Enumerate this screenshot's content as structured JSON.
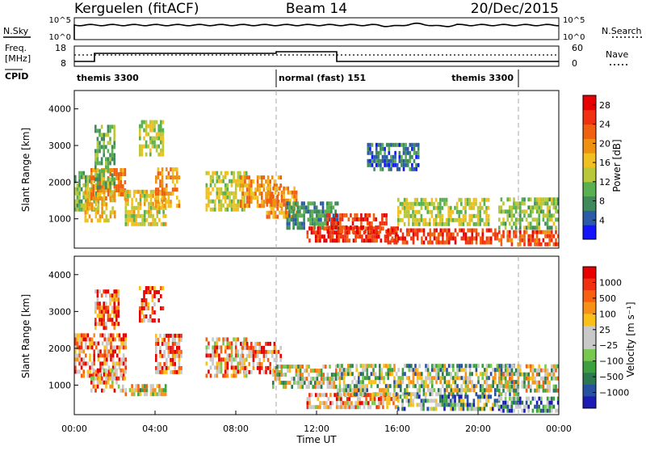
{
  "header": {
    "station": "Kerguelen (fitACF)",
    "beam": "Beam 14",
    "date": "20/Dec/2015"
  },
  "top_panel": {
    "nsky_label": "N.Sky",
    "nsearch_label": "N.Search",
    "ticks_left": [
      "10^5",
      "10^0"
    ],
    "ticks_right": [
      "10^5",
      "10^0"
    ]
  },
  "freq_panel": {
    "freq_label": "Freq.",
    "freq_unit": "[MHz]",
    "nave_label": "Nave",
    "ticks_left": [
      "18",
      "8"
    ],
    "ticks_right": [
      "60",
      "0"
    ],
    "cpid_label": "CPID"
  },
  "cpid_segments": [
    {
      "label": "themis 3300",
      "start_hour": 0,
      "end_hour": 10
    },
    {
      "label": "normal (fast) 151",
      "start_hour": 10,
      "end_hour": 22
    },
    {
      "label": "themis 3300",
      "start_hour": 22,
      "end_hour": 24
    }
  ],
  "colors": {
    "power_scale": [
      "#1414ff",
      "#2a5aa8",
      "#3f8a5a",
      "#58b050",
      "#b8c838",
      "#f0c020",
      "#f09010",
      "#f06010",
      "#f03010",
      "#e80000"
    ],
    "velocity_scale": [
      "#1c1cb4",
      "#2850a0",
      "#2c7850",
      "#3ca040",
      "#78c850",
      "#c8c8c8",
      "#c8c8c8",
      "#f8c018",
      "#f89018",
      "#f86010",
      "#f03010",
      "#e80000"
    ]
  },
  "chart_data": [
    {
      "type": "heatmap",
      "name": "power",
      "ylabel": "Slant Range [km]",
      "yticks": [
        1000,
        2000,
        3000,
        4000
      ],
      "ylim": [
        200,
        4500
      ],
      "xlim": [
        0,
        24
      ],
      "grid": false,
      "colorbar_label": "Power [dB]",
      "colorbar_ticks": [
        4,
        8,
        12,
        16,
        20,
        24,
        28
      ],
      "colorbar_range": [
        0,
        30
      ],
      "markers": [
        10,
        22
      ],
      "regions": [
        {
          "t0": 0.0,
          "t1": 1.2,
          "r0": 1200,
          "r1": 2300,
          "v": 11
        },
        {
          "t0": 0.5,
          "t1": 2.0,
          "r0": 900,
          "r1": 1800,
          "v": 17
        },
        {
          "t0": 0.8,
          "t1": 2.5,
          "r0": 1500,
          "r1": 2300,
          "v": 20
        },
        {
          "t0": 1.0,
          "t1": 2.0,
          "r0": 1800,
          "r1": 3500,
          "v": 10
        },
        {
          "t0": 2.5,
          "t1": 4.5,
          "r0": 800,
          "r1": 1700,
          "v": 15
        },
        {
          "t0": 3.2,
          "t1": 4.4,
          "r0": 2700,
          "r1": 3600,
          "v": 14
        },
        {
          "t0": 4.0,
          "t1": 5.2,
          "r0": 1300,
          "r1": 2300,
          "v": 19
        },
        {
          "t0": 6.5,
          "t1": 8.5,
          "r0": 1200,
          "r1": 2200,
          "v": 14
        },
        {
          "t0": 8.2,
          "t1": 10.2,
          "r0": 1300,
          "r1": 2100,
          "v": 20
        },
        {
          "t0": 9.5,
          "t1": 11.0,
          "r0": 1000,
          "r1": 1800,
          "v": 20
        },
        {
          "t0": 10.5,
          "t1": 13.0,
          "r0": 700,
          "r1": 1400,
          "v": 8
        },
        {
          "t0": 11.5,
          "t1": 16.0,
          "r0": 350,
          "r1": 700,
          "v": 26
        },
        {
          "t0": 12.5,
          "t1": 15.5,
          "r0": 600,
          "r1": 1100,
          "v": 26
        },
        {
          "t0": 15.5,
          "t1": 21.0,
          "r0": 300,
          "r1": 700,
          "v": 25
        },
        {
          "t0": 16.0,
          "t1": 20.5,
          "r0": 800,
          "r1": 1500,
          "v": 14
        },
        {
          "t0": 21.0,
          "t1": 24.0,
          "r0": 250,
          "r1": 600,
          "v": 24
        },
        {
          "t0": 21.0,
          "t1": 24.0,
          "r0": 700,
          "r1": 1500,
          "v": 12
        },
        {
          "t0": 14.5,
          "t1": 17.0,
          "r0": 2300,
          "r1": 3000,
          "v": 6
        }
      ]
    },
    {
      "type": "heatmap",
      "name": "velocity",
      "ylabel": "Slant Range [km]",
      "xlabel": "Time UT",
      "yticks": [
        1000,
        2000,
        3000,
        4000
      ],
      "ylim": [
        200,
        4500
      ],
      "xlim": [
        0,
        24
      ],
      "xticks": [
        "00:00",
        "04:00",
        "08:00",
        "12:00",
        "16:00",
        "20:00",
        "00:00"
      ],
      "grid": false,
      "colorbar_label": "Velocity [m s⁻¹]",
      "colorbar_ticks": [
        "1000",
        "500",
        "100",
        "25",
        "−25",
        "−100",
        "−500",
        "−1000"
      ],
      "markers": [
        10,
        22
      ],
      "regions": [
        {
          "t0": 0.0,
          "t1": 2.5,
          "r0": 1200,
          "r1": 2400,
          "v": 9
        },
        {
          "t0": 0.8,
          "t1": 2.5,
          "r0": 800,
          "r1": 1400,
          "v": 8
        },
        {
          "t0": 1.0,
          "t1": 2.2,
          "r0": 2500,
          "r1": 3500,
          "v": 10
        },
        {
          "t0": 2.5,
          "t1": 4.5,
          "r0": 700,
          "r1": 1000,
          "v": 6
        },
        {
          "t0": 3.2,
          "t1": 4.4,
          "r0": 2700,
          "r1": 3600,
          "v": 10
        },
        {
          "t0": 4.0,
          "t1": 5.3,
          "r0": 1300,
          "r1": 2300,
          "v": 9
        },
        {
          "t0": 6.5,
          "t1": 8.5,
          "r0": 1200,
          "r1": 2200,
          "v": 8
        },
        {
          "t0": 8.2,
          "t1": 10.2,
          "r0": 1300,
          "r1": 2100,
          "v": 9
        },
        {
          "t0": 9.8,
          "t1": 13.0,
          "r0": 900,
          "r1": 1500,
          "v": 6
        },
        {
          "t0": 11.5,
          "t1": 16.0,
          "r0": 350,
          "r1": 700,
          "v": 8
        },
        {
          "t0": 13.0,
          "t1": 22.0,
          "r0": 700,
          "r1": 1500,
          "v": 5
        },
        {
          "t0": 16.0,
          "t1": 21.0,
          "r0": 300,
          "r1": 700,
          "v": 4
        },
        {
          "t0": 21.0,
          "t1": 24.0,
          "r0": 250,
          "r1": 650,
          "v": 3
        },
        {
          "t0": 21.0,
          "t1": 24.0,
          "r0": 800,
          "r1": 1500,
          "v": 6
        }
      ]
    }
  ]
}
